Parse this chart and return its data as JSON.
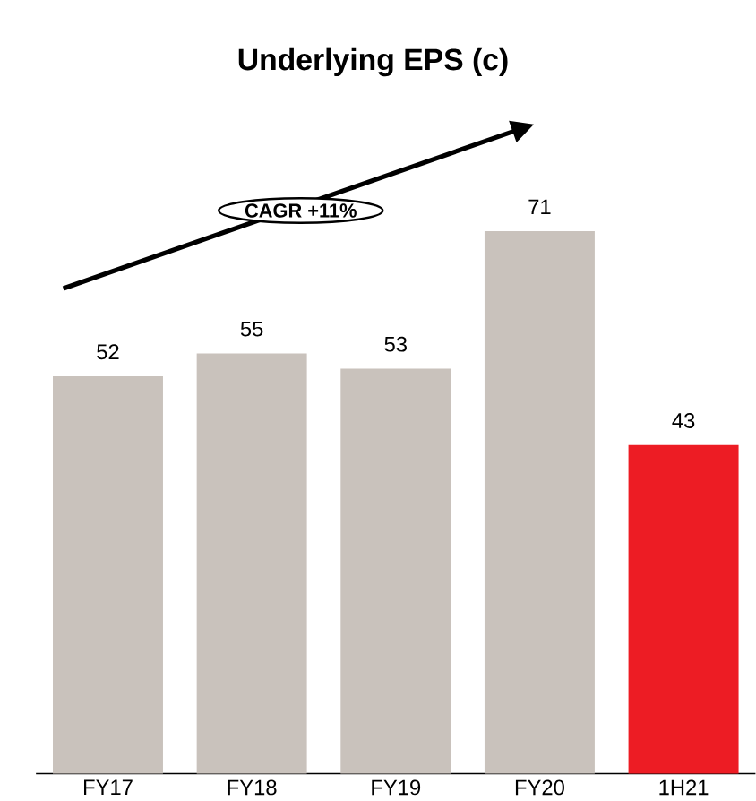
{
  "chart_data": {
    "type": "bar",
    "title": "Underlying EPS (c)",
    "categories": [
      "FY17",
      "FY18",
      "FY19",
      "FY20",
      "1H21"
    ],
    "values": [
      52,
      55,
      53,
      71,
      43
    ],
    "colors": [
      "#c9c2bc",
      "#c9c2bc",
      "#c9c2bc",
      "#c9c2bc",
      "#ed1c24"
    ],
    "data_labels": true,
    "annotations": [
      "CAGR +11%"
    ]
  }
}
